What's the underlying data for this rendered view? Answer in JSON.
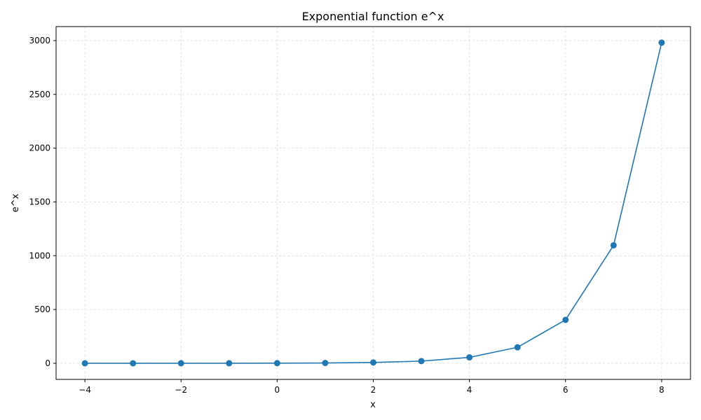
{
  "chart_data": {
    "type": "line",
    "title": "Exponential function e^x",
    "xlabel": "x",
    "ylabel": "e^x",
    "x": [
      -4,
      -3,
      -2,
      -1,
      0,
      1,
      2,
      3,
      4,
      5,
      6,
      7,
      8
    ],
    "series": [
      {
        "values": [
          0.018,
          0.05,
          0.135,
          0.368,
          1,
          2.718,
          7.389,
          20.09,
          54.6,
          148.4,
          403.4,
          1096.6,
          2981
        ],
        "color": "#1f77b4",
        "marker": "circle"
      }
    ],
    "xlim": [
      -4.6,
      8.6
    ],
    "ylim": [
      -150,
      3130
    ],
    "xticks": [
      -4,
      -2,
      0,
      2,
      4,
      6,
      8
    ],
    "xtick_labels": [
      "−4",
      "−2",
      "0",
      "2",
      "4",
      "6",
      "8"
    ],
    "yticks": [
      0,
      500,
      1000,
      1500,
      2000,
      2500,
      3000
    ],
    "ytick_labels": [
      "0",
      "500",
      "1000",
      "1500",
      "2000",
      "2500",
      "3000"
    ],
    "grid": true,
    "grid_style": "dashed",
    "grid_color": "#d0d0d0",
    "legend": false
  }
}
